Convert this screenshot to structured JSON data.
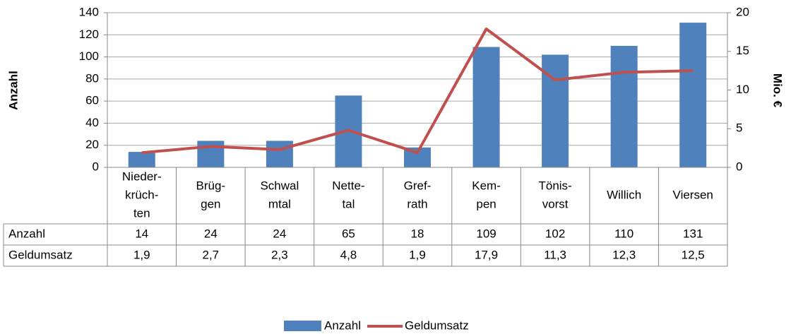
{
  "chart_data": {
    "type": "bar_line_table",
    "ylabel": "Anzahl",
    "y2label": "Mio. €",
    "categories": [
      [
        "Nieder-",
        "krüch-",
        "ten"
      ],
      [
        "Brüg-",
        "gen"
      ],
      [
        "Schwal",
        "mtal"
      ],
      [
        "Nette-",
        "tal"
      ],
      [
        "Gref-",
        "rath"
      ],
      [
        "Kem-",
        "pen"
      ],
      [
        "Tönis-",
        "vorst"
      ],
      [
        "Willich"
      ],
      [
        "Viersen"
      ]
    ],
    "series": [
      {
        "name": "Anzahl",
        "color": "#4f81bd",
        "values": [
          14,
          24,
          24,
          65,
          18,
          109,
          102,
          110,
          131
        ]
      },
      {
        "name": "Geldumsatz",
        "color": "#c0504d",
        "axis": "y2",
        "values": [
          1.9,
          2.7,
          2.3,
          4.8,
          1.9,
          17.9,
          11.3,
          12.3,
          12.5
        ],
        "value_labels": [
          "1,9",
          "2,7",
          "2,3",
          "4,8",
          "1,9",
          "17,9",
          "11,3",
          "12,3",
          "12,5"
        ]
      }
    ],
    "ylim": [
      0,
      140
    ],
    "yticks": [
      0,
      20,
      40,
      60,
      80,
      100,
      120,
      140
    ],
    "y2lim": [
      0,
      20
    ],
    "y2ticks": [
      0,
      5,
      10,
      15,
      20
    ],
    "grid": true,
    "legend": "bottom"
  }
}
